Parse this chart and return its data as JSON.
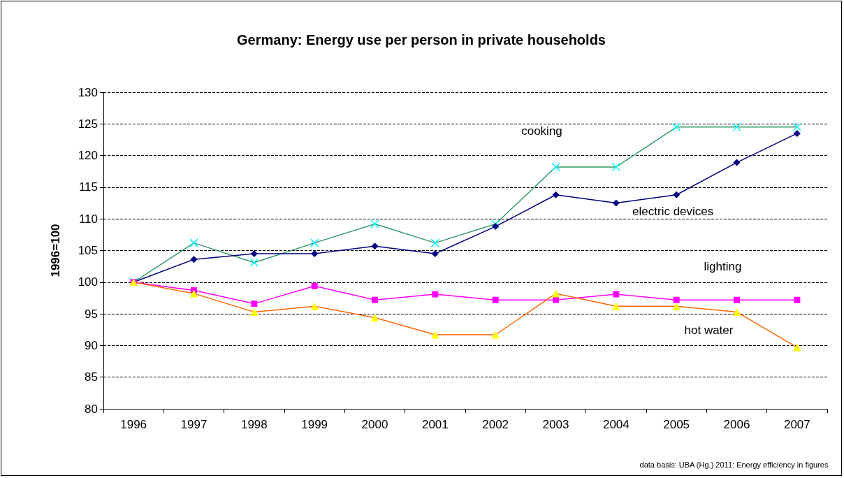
{
  "chart_data": {
    "type": "line",
    "title": "Germany: Energy use per person in private households",
    "ylabel": "1996=100",
    "categories": [
      "1996",
      "1997",
      "1998",
      "1999",
      "2000",
      "2001",
      "2002",
      "2003",
      "2004",
      "2005",
      "2006",
      "2007"
    ],
    "series": [
      {
        "name": "cooking",
        "color": "#339966",
        "marker": "cross",
        "colors": [
          "#00ffff",
          "#00ffff",
          "#00ffff",
          "#00ffff",
          "#00ffff",
          "#00ffff",
          "#00ffff",
          "#00ffff",
          "#00ffff",
          "#00ffff",
          "#00ffff",
          "#00ffff"
        ],
        "values": [
          100,
          106.2,
          103.1,
          106.2,
          109.2,
          106.2,
          109.2,
          118.2,
          118.2,
          124.5,
          124.5,
          124.5
        ]
      },
      {
        "name": "electric devices",
        "color": "#000080",
        "marker": "diamond",
        "values": [
          100,
          103.6,
          104.5,
          104.5,
          105.7,
          104.5,
          108.8,
          113.8,
          112.5,
          113.8,
          118.9,
          123.5
        ]
      },
      {
        "name": "lighting",
        "color": "#ff00ff",
        "marker": "square",
        "values": [
          100,
          98.7,
          96.6,
          99.4,
          97.2,
          98.1,
          97.2,
          97.2,
          98.1,
          97.2,
          97.2,
          97.2
        ]
      },
      {
        "name": "hot water",
        "color": "#ff6600",
        "marker": "triangle",
        "colors": [
          "#ffff00",
          "#ffff00",
          "#ffff00",
          "#ffff00",
          "#ffff00",
          "#ffff00",
          "#ffff00",
          "#ffff00",
          "#ffff00",
          "#ffff00",
          "#ffff00",
          "#ffff00"
        ],
        "values": [
          100,
          98.2,
          95.3,
          96.2,
          94.4,
          91.7,
          91.7,
          98.2,
          96.2,
          96.2,
          95.3,
          89.7
        ]
      }
    ],
    "ylim": [
      80,
      130
    ],
    "yticks": [
      80,
      85,
      90,
      95,
      100,
      105,
      110,
      115,
      120,
      125,
      130
    ],
    "grid": "y",
    "legend": false,
    "line_style": "solid",
    "annotations": [
      "data basis: UBA (Hg.) 2011: Energy efficiency in figures"
    ]
  }
}
